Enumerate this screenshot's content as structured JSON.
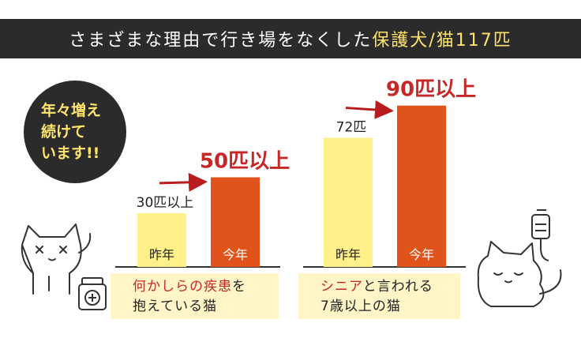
{
  "title": {
    "prefix": "さまざまな理由で行き場をなくした",
    "highlight": "保護犬/猫117匹"
  },
  "badge": {
    "lines": [
      "年々増え",
      "続けて",
      "います!!"
    ]
  },
  "colors": {
    "previous": "#fff08a",
    "current": "#e0531a",
    "banner": "#2b2b2b",
    "highlight": "#ffe36e",
    "arrow": "#b81c1c"
  },
  "chart_data": [
    {
      "type": "bar",
      "categories": [
        "昨年",
        "今年"
      ],
      "values": [
        30,
        50
      ],
      "value_labels": [
        "30匹以上",
        "50匹以上"
      ],
      "caption": {
        "line1_highlight": "何かしらの疾患",
        "line1_rest": "を",
        "line2": "抱えている猫"
      }
    },
    {
      "type": "bar",
      "categories": [
        "昨年",
        "今年"
      ],
      "values": [
        72,
        90
      ],
      "value_labels": [
        "72匹",
        "90匹以上"
      ],
      "caption": {
        "line1_highlight": "シニア",
        "line1_rest": "と言われる",
        "line2": "7歳以上の猫"
      }
    }
  ],
  "icons": [
    "dizzy-cat-icon",
    "medicine-bottle-icon",
    "sleeping-cat-icon",
    "iv-drip-icon"
  ]
}
